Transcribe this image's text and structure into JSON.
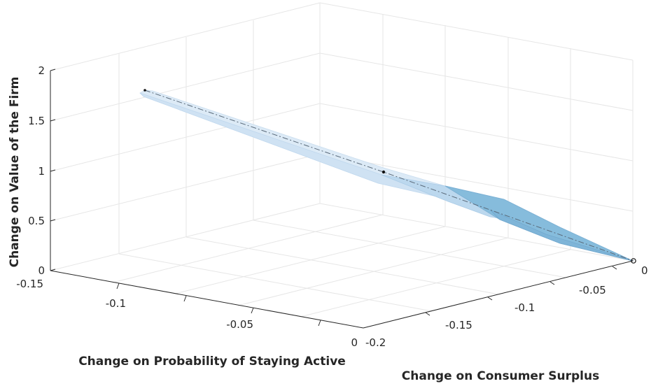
{
  "chart_data": {
    "type": "surface3d",
    "title": "",
    "x_axis": {
      "label": "Change on Probability of Staying Active",
      "range": [
        -0.15,
        0
      ],
      "ticks": [
        "-0.15",
        "-0.1",
        "-0.05",
        "0"
      ]
    },
    "y_axis": {
      "label": "Change on Consumer Surplus",
      "range": [
        -0.2,
        0
      ],
      "ticks": [
        "-0.2",
        "-0.15",
        "-0.1",
        "-0.05",
        "0"
      ]
    },
    "z_axis": {
      "label": "Change on Value of the Firm",
      "range": [
        0,
        2
      ],
      "ticks": [
        "0",
        "0.5",
        "1",
        "1.5",
        "2"
      ]
    },
    "grid": true,
    "series": [
      {
        "kind": "line",
        "style": "dash-dot",
        "points": [
          {
            "x": -0.08,
            "y": -0.085,
            "z": 1.78
          },
          {
            "x": -0.035,
            "y": -0.06,
            "z": 0.98
          },
          {
            "x": 0,
            "y": 0,
            "z": 0
          }
        ]
      },
      {
        "kind": "surface",
        "color": "#9ecbe6",
        "edge_color": "#7fb9dd",
        "region_colors": [
          "#deebf7",
          "#c6dbef",
          "#9ecae1"
        ]
      }
    ],
    "markers": [
      {
        "x": -0.08,
        "y": -0.085,
        "z": 1.78,
        "shape": "dot"
      },
      {
        "x": -0.035,
        "y": -0.06,
        "z": 0.98,
        "shape": "dot"
      },
      {
        "x": 0,
        "y": 0,
        "z": 0,
        "shape": "circle"
      }
    ]
  }
}
